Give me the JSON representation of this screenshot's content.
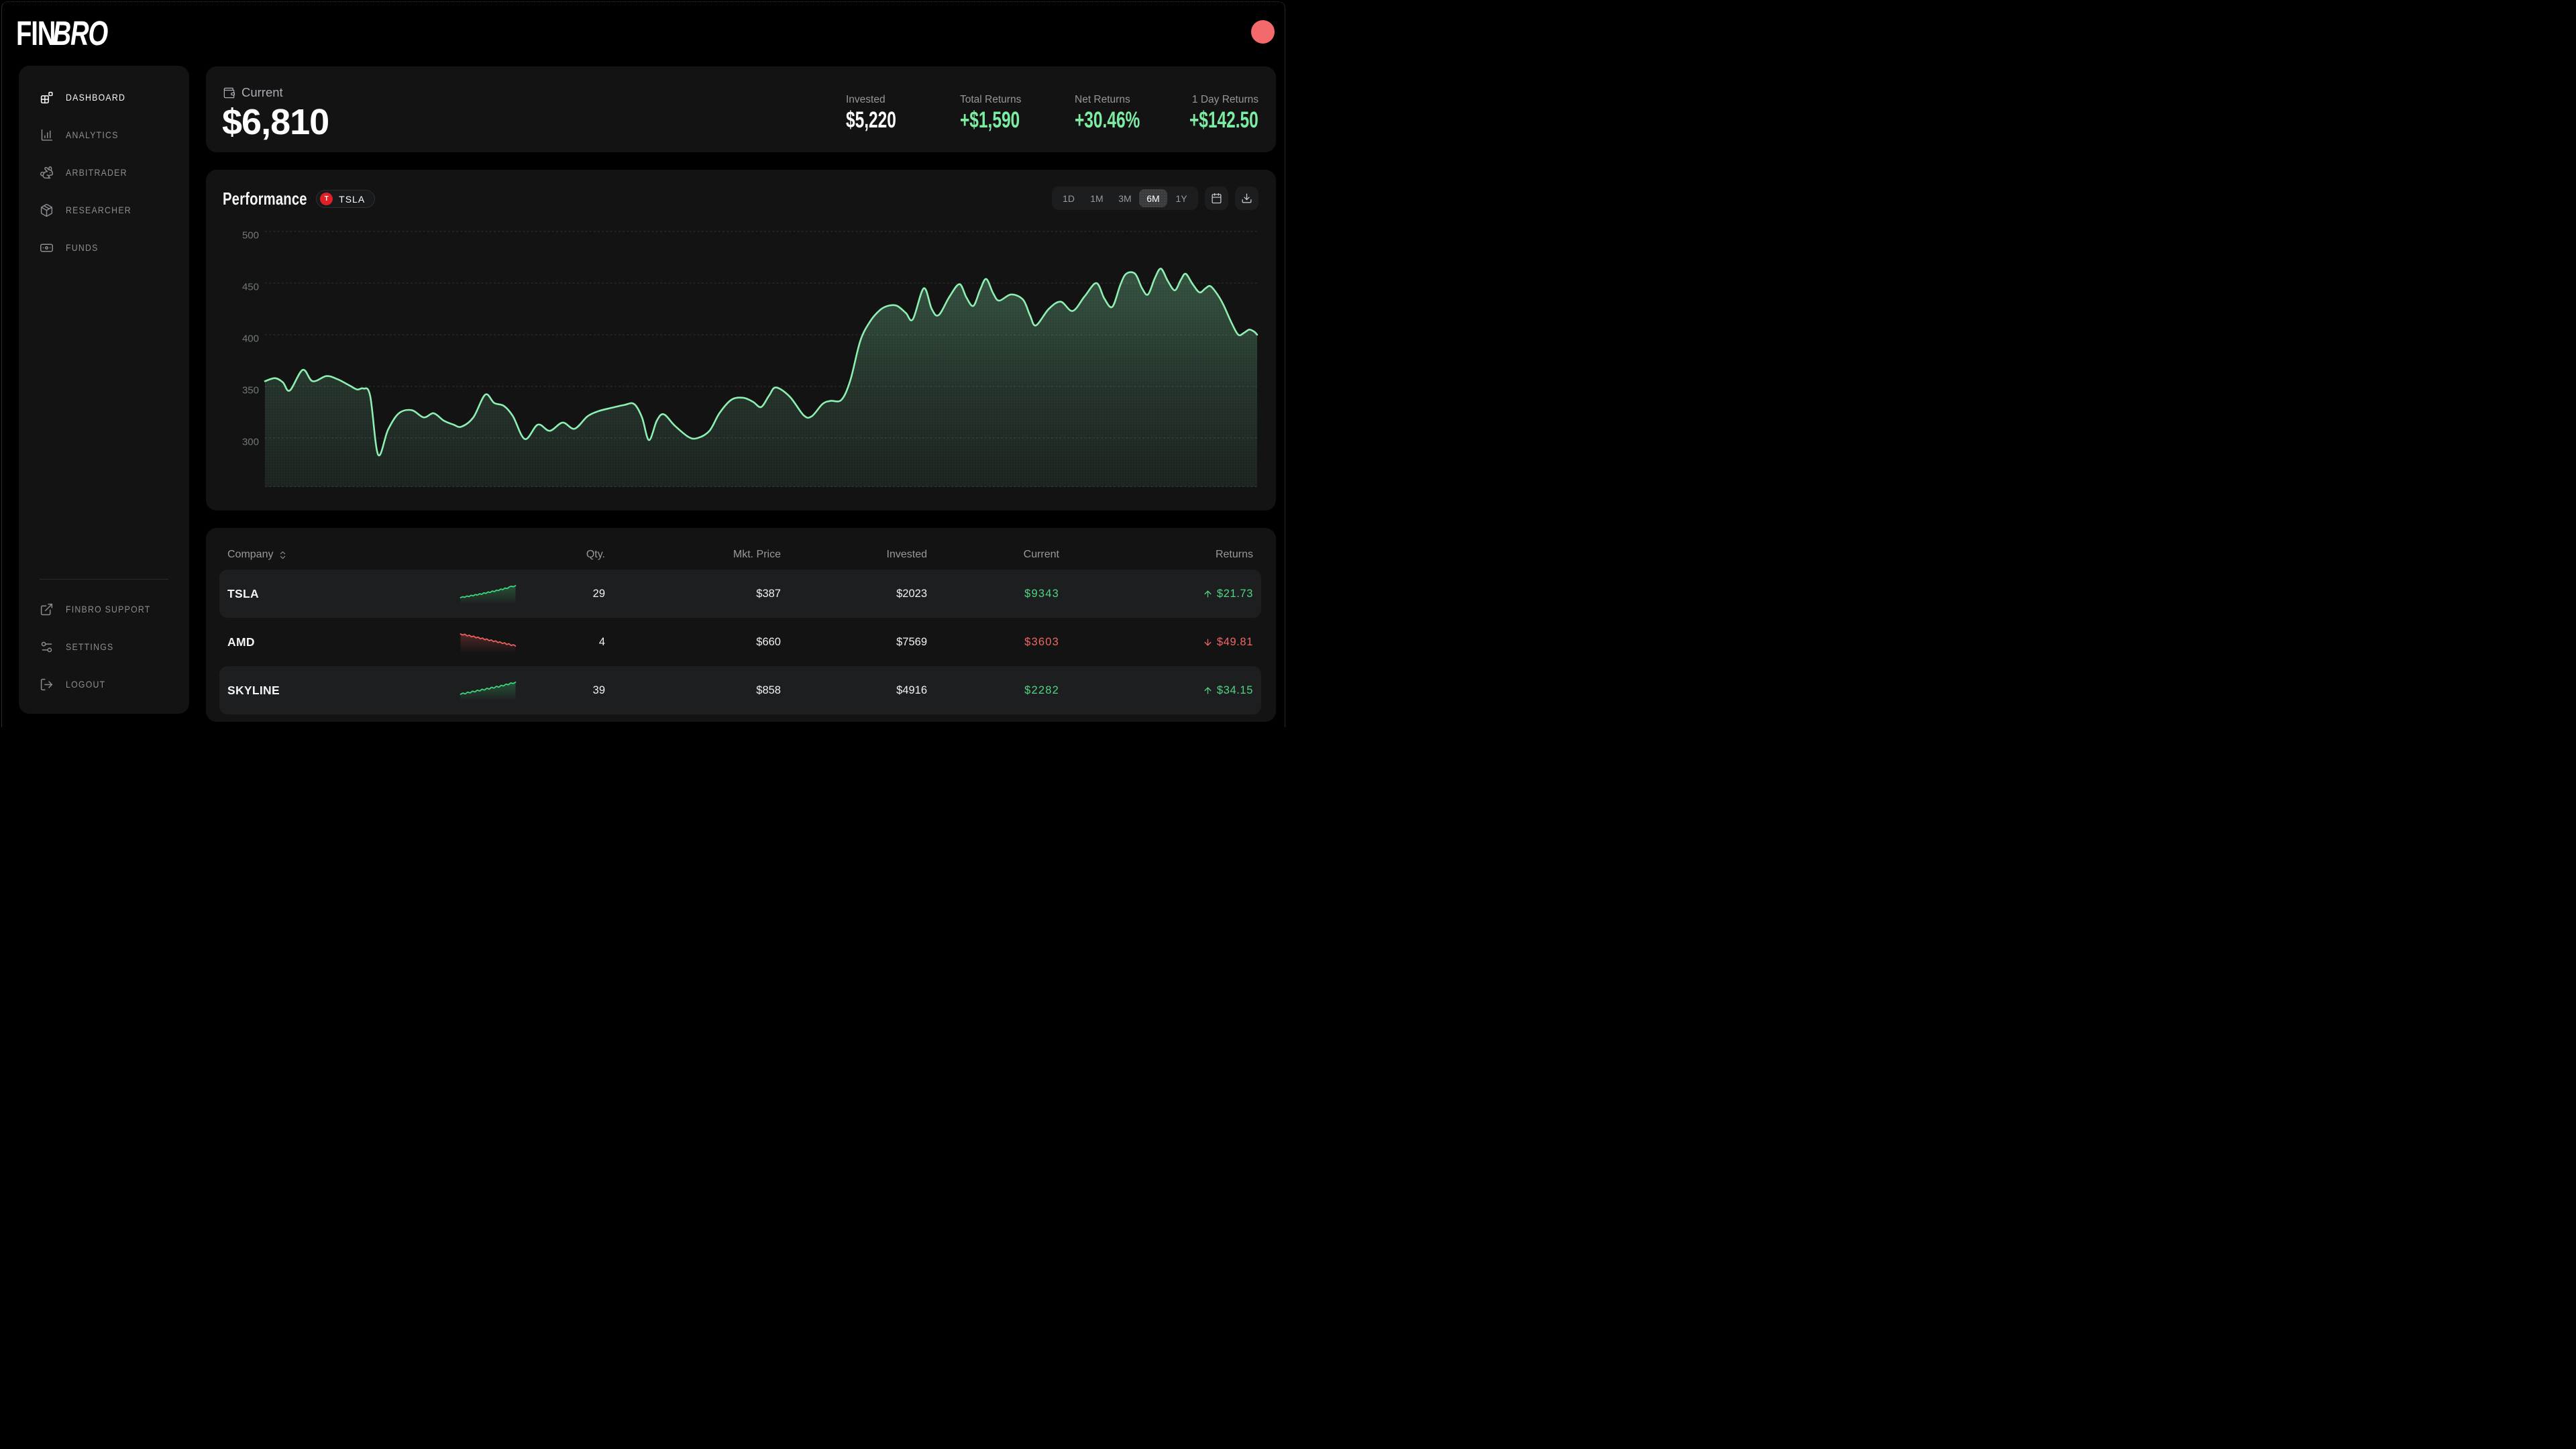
{
  "brand": {
    "name_regular": "FIN",
    "name_italic": "BRO"
  },
  "header": {
    "avatar_color": "#f4696b"
  },
  "sidebar": {
    "items": [
      {
        "label": "DASHBOARD",
        "icon": "dashboard",
        "active": true
      },
      {
        "label": "ANALYTICS",
        "icon": "analytics",
        "active": false
      },
      {
        "label": "ARBITRADER",
        "icon": "rabbit",
        "active": false
      },
      {
        "label": "RESEARCHER",
        "icon": "box",
        "active": false
      },
      {
        "label": "FUNDS",
        "icon": "banknote",
        "active": false
      }
    ],
    "footer_items": [
      {
        "label": "FINBRO SUPPORT",
        "icon": "external",
        "active": false
      },
      {
        "label": "SETTINGS",
        "icon": "sliders",
        "active": false
      },
      {
        "label": "LOGOUT",
        "icon": "logout",
        "active": false
      }
    ]
  },
  "summary": {
    "label": "Current",
    "value": "$6,810",
    "stats": [
      {
        "label": "Invested",
        "value": "$5,220",
        "tone": "white"
      },
      {
        "label": "Total Returns",
        "value": "+$1,590",
        "tone": "green"
      },
      {
        "label": "Net Returns",
        "value": "+30.46%",
        "tone": "green"
      },
      {
        "label": "1 Day Returns",
        "value": "+$142.50",
        "tone": "green"
      }
    ]
  },
  "performance": {
    "title": "Performance",
    "ticker": {
      "letter": "T",
      "symbol": "TSLA",
      "color": "#e01f26"
    },
    "ranges": [
      "1D",
      "1M",
      "3M",
      "6M",
      "1Y"
    ],
    "selected_range": "6M"
  },
  "chart_data": {
    "type": "area",
    "title": "Performance",
    "series_name": "TSLA",
    "ylim": [
      250,
      500
    ],
    "yticks": [
      500,
      450,
      400,
      350,
      300
    ],
    "grid": "dashed-horizontal",
    "line_color": "#8df0b2",
    "fill_color": "rgba(120,210,155,0.30)",
    "points": [
      [
        0.0,
        355
      ],
      [
        0.01,
        358
      ],
      [
        0.018,
        354
      ],
      [
        0.025,
        346
      ],
      [
        0.038,
        366
      ],
      [
        0.048,
        355
      ],
      [
        0.062,
        360
      ],
      [
        0.073,
        357
      ],
      [
        0.085,
        351
      ],
      [
        0.093,
        347
      ],
      [
        0.099,
        348
      ],
      [
        0.106,
        341
      ],
      [
        0.114,
        284
      ],
      [
        0.124,
        308
      ],
      [
        0.135,
        324
      ],
      [
        0.148,
        327
      ],
      [
        0.16,
        320
      ],
      [
        0.17,
        324
      ],
      [
        0.18,
        317
      ],
      [
        0.19,
        313
      ],
      [
        0.198,
        311
      ],
      [
        0.21,
        320
      ],
      [
        0.222,
        342
      ],
      [
        0.231,
        334
      ],
      [
        0.241,
        331
      ],
      [
        0.25,
        321
      ],
      [
        0.262,
        299
      ],
      [
        0.275,
        313
      ],
      [
        0.287,
        307
      ],
      [
        0.3,
        315
      ],
      [
        0.312,
        309
      ],
      [
        0.325,
        321
      ],
      [
        0.336,
        326
      ],
      [
        0.348,
        329
      ],
      [
        0.362,
        332
      ],
      [
        0.372,
        333
      ],
      [
        0.38,
        320
      ],
      [
        0.387,
        298
      ],
      [
        0.395,
        317
      ],
      [
        0.402,
        323
      ],
      [
        0.413,
        312
      ],
      [
        0.427,
        301
      ],
      [
        0.436,
        300
      ],
      [
        0.448,
        307
      ],
      [
        0.458,
        324
      ],
      [
        0.47,
        337
      ],
      [
        0.482,
        339
      ],
      [
        0.492,
        335
      ],
      [
        0.5,
        330
      ],
      [
        0.508,
        341
      ],
      [
        0.515,
        349
      ],
      [
        0.529,
        340
      ],
      [
        0.543,
        322
      ],
      [
        0.551,
        321
      ],
      [
        0.562,
        333
      ],
      [
        0.57,
        336
      ],
      [
        0.581,
        337
      ],
      [
        0.59,
        356
      ],
      [
        0.6,
        394
      ],
      [
        0.61,
        413
      ],
      [
        0.62,
        424
      ],
      [
        0.628,
        428
      ],
      [
        0.637,
        428
      ],
      [
        0.646,
        421
      ],
      [
        0.653,
        415
      ],
      [
        0.664,
        445
      ],
      [
        0.672,
        425
      ],
      [
        0.679,
        419
      ],
      [
        0.69,
        437
      ],
      [
        0.7,
        449
      ],
      [
        0.707,
        436
      ],
      [
        0.714,
        428
      ],
      [
        0.721,
        444
      ],
      [
        0.727,
        454
      ],
      [
        0.734,
        440
      ],
      [
        0.74,
        433
      ],
      [
        0.752,
        439
      ],
      [
        0.764,
        434
      ],
      [
        0.771,
        419
      ],
      [
        0.777,
        409
      ],
      [
        0.79,
        425
      ],
      [
        0.802,
        432
      ],
      [
        0.814,
        423
      ],
      [
        0.826,
        437
      ],
      [
        0.838,
        450
      ],
      [
        0.846,
        435
      ],
      [
        0.854,
        427
      ],
      [
        0.862,
        448
      ],
      [
        0.868,
        459
      ],
      [
        0.877,
        459
      ],
      [
        0.884,
        445
      ],
      [
        0.89,
        439
      ],
      [
        0.897,
        455
      ],
      [
        0.903,
        464
      ],
      [
        0.91,
        452
      ],
      [
        0.917,
        443
      ],
      [
        0.923,
        453
      ],
      [
        0.928,
        459
      ],
      [
        0.935,
        449
      ],
      [
        0.942,
        441
      ],
      [
        0.948,
        445
      ],
      [
        0.953,
        447
      ],
      [
        0.96,
        439
      ],
      [
        0.966,
        429
      ],
      [
        0.974,
        412
      ],
      [
        0.981,
        400
      ],
      [
        0.987,
        402
      ],
      [
        0.992,
        405
      ],
      [
        0.997,
        403
      ],
      [
        1.0,
        400
      ]
    ]
  },
  "holdings": {
    "columns": [
      "Company",
      "Qty.",
      "Mkt. Price",
      "Invested",
      "Current",
      "Returns"
    ],
    "rows": [
      {
        "company": "TSLA",
        "qty": "29",
        "price": "$387",
        "invested": "$2023",
        "current": "$9343",
        "returns": "$21.73",
        "trend": "up",
        "spark": [
          3.0,
          3.3,
          3.15,
          3.55,
          3.4,
          3.8,
          3.65,
          4.05,
          3.9,
          4.3,
          4.15,
          4.6,
          4.45,
          4.9,
          4.75,
          5.2,
          5.05,
          5.5,
          5.4,
          5.85,
          5.7,
          6.2,
          6.05,
          6.55,
          6.8,
          6.65,
          7.0
        ]
      },
      {
        "company": "AMD",
        "qty": "4",
        "price": "$660",
        "invested": "$7569",
        "current": "$3603",
        "returns": "$49.81",
        "trend": "down",
        "spark": [
          7.0,
          6.85,
          6.95,
          6.7,
          6.8,
          6.55,
          6.65,
          6.4,
          6.5,
          6.25,
          6.35,
          6.1,
          6.2,
          5.95,
          6.05,
          5.8,
          5.9,
          5.65,
          5.75,
          5.5,
          5.6,
          5.35,
          5.45,
          5.2,
          5.3,
          5.1
        ]
      },
      {
        "company": "SKYLINE",
        "qty": "39",
        "price": "$858",
        "invested": "$4916",
        "current": "$2282",
        "returns": "$34.15",
        "trend": "up",
        "spark": [
          3.6,
          3.85,
          3.7,
          4.05,
          3.9,
          4.25,
          4.1,
          4.45,
          4.3,
          4.65,
          4.5,
          4.85,
          4.7,
          5.05,
          4.9,
          5.25,
          5.1,
          5.45,
          5.35,
          5.7,
          5.6,
          5.95,
          5.85,
          6.1
        ]
      }
    ]
  },
  "colors": {
    "background": "#000000",
    "card": "#131314",
    "row_stripe": "#1d1e1f",
    "accent_green_bright": "#7ceca3",
    "accent_green": "#4fd584",
    "accent_red": "#f06663",
    "line_green": "#8df0b2",
    "text_muted": "#8b8e91"
  }
}
